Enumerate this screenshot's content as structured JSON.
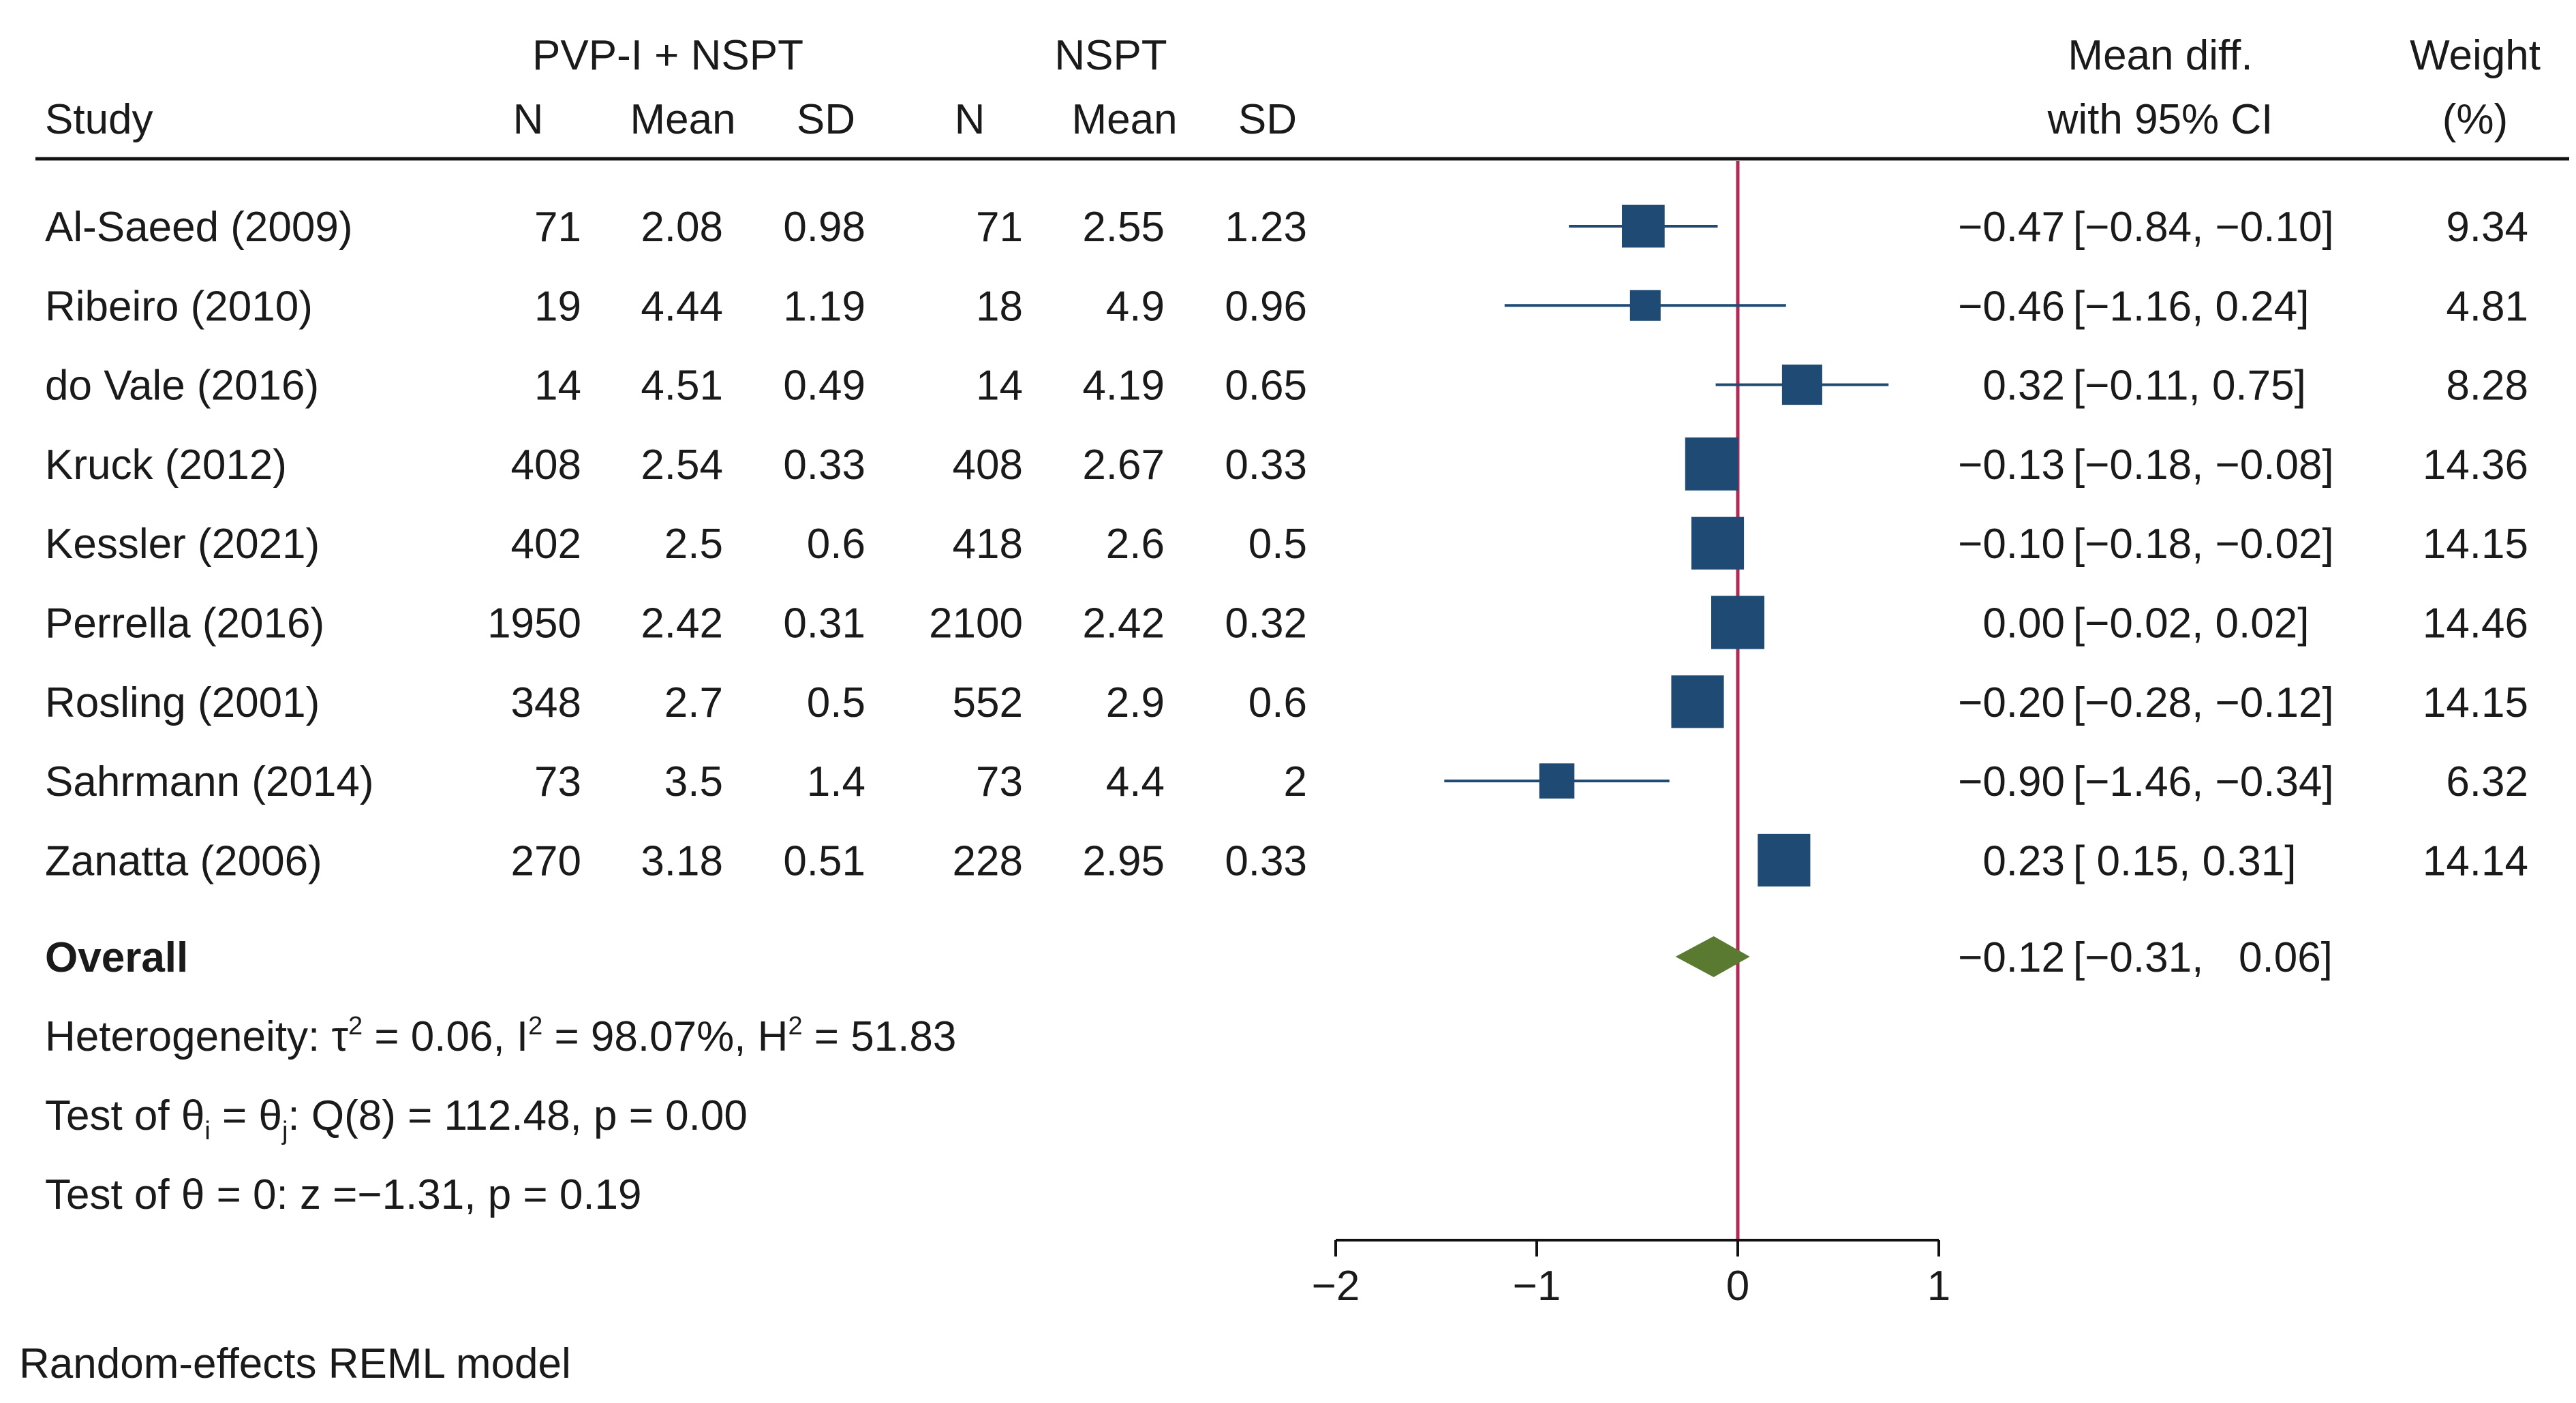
{
  "chart_data": {
    "type": "forest",
    "headers": {
      "group1": "PVP-I + NSPT",
      "group2": "NSPT",
      "study": "Study",
      "n": "N",
      "mean": "Mean",
      "sd": "SD",
      "effect_line1": "Mean diff.",
      "effect_line2": "with 95% CI",
      "weight_line1": "Weight",
      "weight_line2": "(%)"
    },
    "studies": [
      {
        "name": "Al-Saeed (2009)",
        "n1": "71",
        "mean1": "2.08",
        "sd1": "0.98",
        "n2": "71",
        "mean2": "2.55",
        "sd2": "1.23",
        "md": -0.47,
        "lo": -0.84,
        "hi": -0.1,
        "md_text": "−0.47",
        "ci_text": "[−0.84, −0.10]",
        "weight": 9.34,
        "weight_text": "9.34"
      },
      {
        "name": "Ribeiro (2010)",
        "n1": "19",
        "mean1": "4.44",
        "sd1": "1.19",
        "n2": "18",
        "mean2": "4.9",
        "sd2": "0.96",
        "md": -0.46,
        "lo": -1.16,
        "hi": 0.24,
        "md_text": "−0.46",
        "ci_text": "[−1.16,   0.24]",
        "weight": 4.81,
        "weight_text": "4.81"
      },
      {
        "name": "do Vale (2016)",
        "n1": "14",
        "mean1": "4.51",
        "sd1": "0.49",
        "n2": "14",
        "mean2": "4.19",
        "sd2": "0.65",
        "md": 0.32,
        "lo": -0.11,
        "hi": 0.75,
        "md_text": "0.32",
        "ci_text": "[−0.11,   0.75]",
        "weight": 8.28,
        "weight_text": "8.28"
      },
      {
        "name": "Kruck (2012)",
        "n1": "408",
        "mean1": "2.54",
        "sd1": "0.33",
        "n2": "408",
        "mean2": "2.67",
        "sd2": "0.33",
        "md": -0.13,
        "lo": -0.18,
        "hi": -0.08,
        "md_text": "−0.13",
        "ci_text": "[−0.18, −0.08]",
        "weight": 14.36,
        "weight_text": "14.36"
      },
      {
        "name": "Kessler (2021)",
        "n1": "402",
        "mean1": "2.5",
        "sd1": "0.6",
        "n2": "418",
        "mean2": "2.6",
        "sd2": "0.5",
        "md": -0.1,
        "lo": -0.18,
        "hi": -0.02,
        "md_text": "−0.10",
        "ci_text": "[−0.18, −0.02]",
        "weight": 14.15,
        "weight_text": "14.15"
      },
      {
        "name": "Perrella (2016)",
        "n1": "1950",
        "mean1": "2.42",
        "sd1": "0.31",
        "n2": "2100",
        "mean2": "2.42",
        "sd2": "0.32",
        "md": 0.0,
        "lo": -0.02,
        "hi": 0.02,
        "md_text": "0.00",
        "ci_text": "[−0.02,   0.02]",
        "weight": 14.46,
        "weight_text": "14.46"
      },
      {
        "name": "Rosling (2001)",
        "n1": "348",
        "mean1": "2.7",
        "sd1": "0.5",
        "n2": "552",
        "mean2": "2.9",
        "sd2": "0.6",
        "md": -0.2,
        "lo": -0.28,
        "hi": -0.12,
        "md_text": "−0.20",
        "ci_text": "[−0.28, −0.12]",
        "weight": 14.15,
        "weight_text": "14.15"
      },
      {
        "name": "Sahrmann (2014)",
        "n1": "73",
        "mean1": "3.5",
        "sd1": "1.4",
        "n2": "73",
        "mean2": "4.4",
        "sd2": "2",
        "md": -0.9,
        "lo": -1.46,
        "hi": -0.34,
        "md_text": "−0.90",
        "ci_text": "[−1.46, −0.34]",
        "weight": 6.32,
        "weight_text": "6.32"
      },
      {
        "name": "Zanatta (2006)",
        "n1": "270",
        "mean1": "3.18",
        "sd1": "0.51",
        "n2": "228",
        "mean2": "2.95",
        "sd2": "0.33",
        "md": 0.23,
        "lo": 0.15,
        "hi": 0.31,
        "md_text": "0.23",
        "ci_text": "[ 0.15,   0.31]",
        "weight": 14.14,
        "weight_text": "14.14"
      }
    ],
    "overall": {
      "label": "Overall",
      "md": -0.12,
      "lo": -0.31,
      "hi": 0.06,
      "md_text": "−0.12",
      "ci_text": "[−0.31,   0.06]"
    },
    "stats": {
      "heterogeneity": {
        "prefix": "Heterogeneity: ",
        "tau": "τ",
        "tau_sup": "2",
        "tau_val": " = 0.06, I",
        "i_sup": "2",
        "i_val": " = 98.07%, H",
        "h_sup": "2",
        "h_val": " = 51.83"
      },
      "test_equal": {
        "prefix": "Test of θ",
        "sub_i": "i",
        "mid": " = θ",
        "sub_j": "j",
        "rest": ": Q(8) = 112.48, p = 0.00"
      },
      "test_zero": "Test of θ = 0: z =−1.31, p = 0.19"
    },
    "x_axis": {
      "ticks": [
        -2,
        -1,
        0,
        1
      ],
      "tick_labels": [
        "−2",
        "−1",
        "0",
        "1"
      ],
      "range": [
        -2,
        1
      ]
    },
    "reference_line": 0,
    "model_note": "Random-effects REML model",
    "colors": {
      "marker": "#1e4a73",
      "diamond": "#5a7a32",
      "reference": "#b02a55",
      "text": "#1a1a1a",
      "rule": "#111111"
    }
  }
}
